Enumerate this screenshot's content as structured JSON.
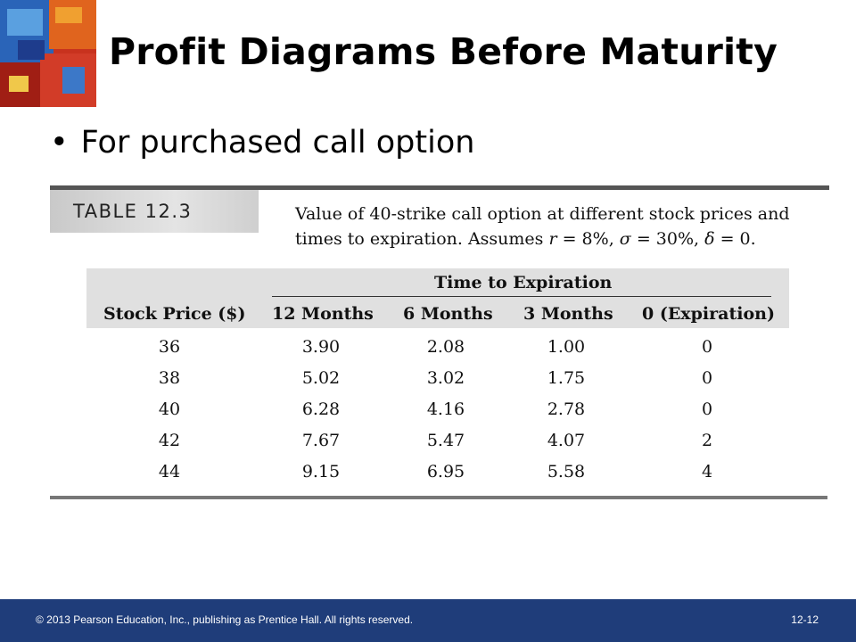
{
  "slide": {
    "title": "Profit Diagrams Before Maturity",
    "bullet": "For purchased call option"
  },
  "table": {
    "label": "TABLE 12.3",
    "caption_line1": "Value of 40-strike call option at different stock prices and",
    "caption_line2_prefix": "times to expiration. Assumes ",
    "caption_r": "r",
    "caption_r_val": " = 8%, ",
    "caption_sigma": "σ",
    "caption_sigma_val": " = 30%, ",
    "caption_delta": "δ",
    "caption_delta_val": " = 0.",
    "group_header": "Time to Expiration",
    "columns": [
      "Stock Price ($)",
      "12 Months",
      "6 Months",
      "3 Months",
      "0 (Expiration)"
    ],
    "rows": [
      [
        "36",
        "3.90",
        "2.08",
        "1.00",
        "0"
      ],
      [
        "38",
        "5.02",
        "3.02",
        "1.75",
        "0"
      ],
      [
        "40",
        "6.28",
        "4.16",
        "2.78",
        "0"
      ],
      [
        "42",
        "7.67",
        "5.47",
        "4.07",
        "2"
      ],
      [
        "44",
        "9.15",
        "6.95",
        "5.58",
        "4"
      ]
    ]
  },
  "footer": {
    "copyright": "© 2013 Pearson Education, Inc., publishing as Prentice Hall. All rights reserved.",
    "page": "12-12"
  },
  "colors": {
    "footer_bg": "#1f3d7a",
    "header_bg": "#e0e0e0"
  }
}
